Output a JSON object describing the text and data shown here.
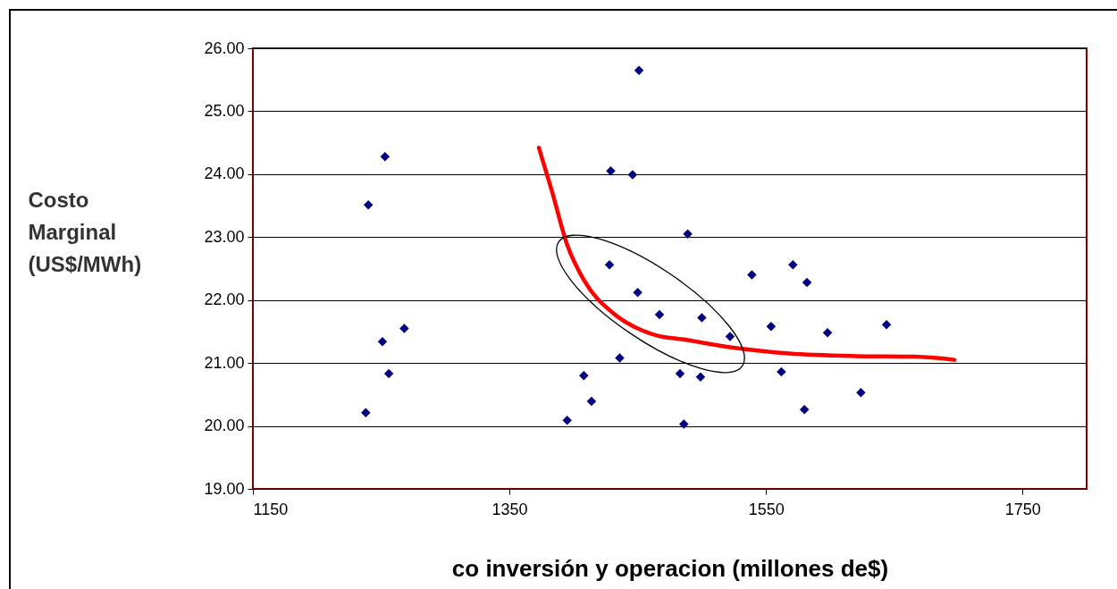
{
  "chart_data": {
    "type": "scatter",
    "xlabel": "co inversión y operacion (millones de$)",
    "ylabel": "Costo Marginal (US$/MWh)",
    "xlim": [
      1150,
      1800
    ],
    "xticks": [
      1150,
      1350,
      1550,
      1750
    ],
    "ylim": [
      19,
      26
    ],
    "yticks": [
      {
        "value": 19,
        "label": "19.00"
      },
      {
        "value": 20,
        "label": "20.00"
      },
      {
        "value": 21,
        "label": "21.00"
      },
      {
        "value": 22,
        "label": "22.00"
      },
      {
        "value": 23,
        "label": "23.00"
      },
      {
        "value": 24,
        "label": "24.00"
      },
      {
        "value": 25,
        "label": "25.00"
      },
      {
        "value": 26,
        "label": "26.00"
      }
    ],
    "grid": "y",
    "marker": "diamond",
    "series": [
      {
        "color": "#000080",
        "x": [
          1253,
          1240,
          1268,
          1251,
          1256,
          1238,
          1451,
          1429,
          1446,
          1428,
          1450,
          1467,
          1436,
          1408,
          1414,
          1395,
          1489,
          1500,
          1522,
          1483,
          1499,
          1486,
          1539,
          1571,
          1582,
          1554,
          1598,
          1644,
          1562,
          1580,
          1624
        ],
        "values": [
          24.28,
          23.51,
          21.55,
          21.34,
          20.83,
          20.21,
          25.65,
          24.05,
          23.99,
          22.56,
          22.12,
          21.77,
          21.08,
          20.8,
          20.39,
          20.09,
          23.05,
          21.72,
          21.42,
          20.83,
          20.78,
          20.03,
          22.4,
          22.56,
          22.28,
          21.58,
          21.48,
          21.61,
          20.86,
          20.26,
          20.53
        ]
      },
      {
        "type": "line",
        "color": "#ff0000",
        "marker": "none",
        "x": [
          1373,
          1383,
          1395,
          1408,
          1431,
          1452,
          1471,
          1480,
          1522,
          1568,
          1620,
          1666,
          1697
        ],
        "values": [
          24.42,
          23.74,
          22.88,
          22.32,
          21.79,
          21.53,
          21.41,
          21.39,
          21.25,
          21.15,
          21.11,
          21.1,
          21.05
        ]
      }
    ]
  }
}
